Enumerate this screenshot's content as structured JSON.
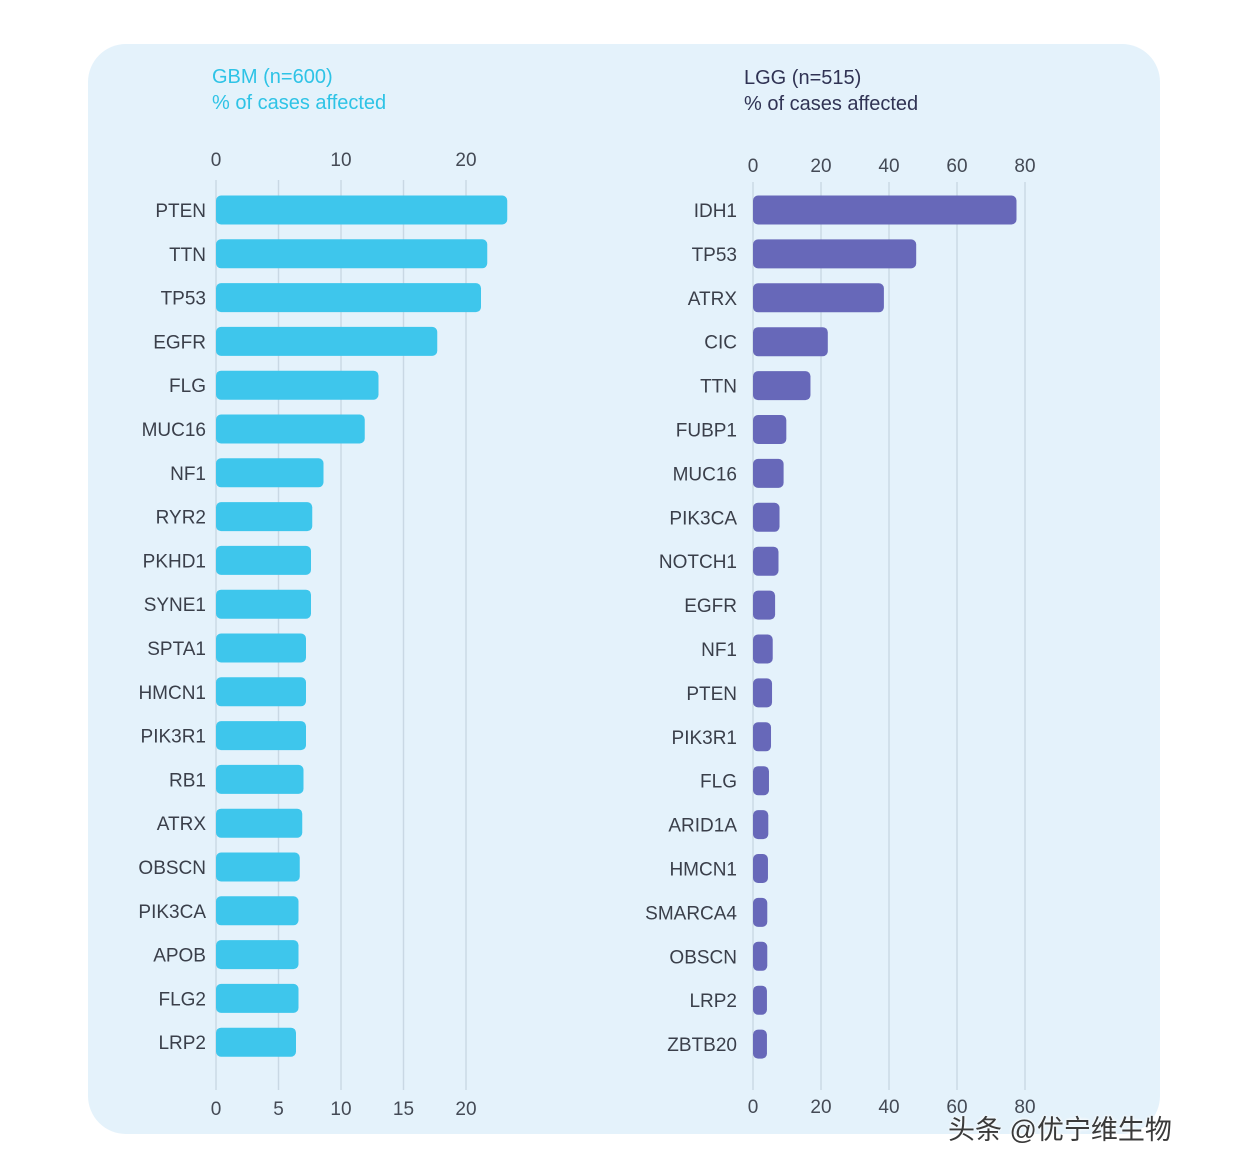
{
  "charts": {
    "gbm": {
      "title_line1": "GBM (n=600)",
      "title_line2": "% of cases affected"
    },
    "lgg": {
      "title_line1": "LGG (n=515)",
      "title_line2": "% of cases affected"
    }
  },
  "watermark": {
    "prefix": "头条",
    "handle": "@优宁维生物"
  },
  "colors": {
    "gbm_bar": "#3ec6ec",
    "lgg_bar": "#6768b9",
    "panel_bg": "#e4f2fb",
    "gbm_title": "#2ec3e6",
    "lgg_title": "#303354"
  },
  "chart_data": [
    {
      "type": "bar",
      "orientation": "horizontal",
      "title": "GBM (n=600)",
      "xlabel": "% of cases affected",
      "xlim": [
        0,
        24
      ],
      "top_ticks": [
        0,
        10,
        20
      ],
      "bottom_ticks": [
        0,
        5,
        10,
        15,
        20
      ],
      "grid": true,
      "categories": [
        "PTEN",
        "TTN",
        "TP53",
        "EGFR",
        "FLG",
        "MUC16",
        "NF1",
        "RYR2",
        "PKHD1",
        "SYNE1",
        "SPTA1",
        "HMCN1",
        "PIK3R1",
        "RB1",
        "ATRX",
        "OBSCN",
        "PIK3CA",
        "APOB",
        "FLG2",
        "LRP2"
      ],
      "values": [
        23.3,
        21.7,
        21.2,
        17.7,
        13.0,
        11.9,
        8.6,
        7.7,
        7.6,
        7.6,
        7.2,
        7.2,
        7.2,
        7.0,
        6.9,
        6.7,
        6.6,
        6.6,
        6.6,
        6.4
      ]
    },
    {
      "type": "bar",
      "orientation": "horizontal",
      "title": "LGG (n=515)",
      "xlabel": "% of cases affected",
      "xlim": [
        0,
        80
      ],
      "top_ticks": [
        0,
        20,
        40,
        60,
        80
      ],
      "bottom_ticks": [
        0,
        20,
        40,
        60,
        80
      ],
      "grid": true,
      "categories": [
        "IDH1",
        "TP53",
        "ATRX",
        "CIC",
        "TTN",
        "FUBP1",
        "MUC16",
        "PIK3CA",
        "NOTCH1",
        "EGFR",
        "NF1",
        "PTEN",
        "PIK3R1",
        "FLG",
        "ARID1A",
        "HMCN1",
        "SMARCA4",
        "OBSCN",
        "LRP2",
        "ZBTB20"
      ],
      "values": [
        77.5,
        48.0,
        38.5,
        22.0,
        16.9,
        9.8,
        9.0,
        7.8,
        7.5,
        6.5,
        5.8,
        5.6,
        5.3,
        4.7,
        4.5,
        4.4,
        4.2,
        4.2,
        4.1,
        4.1
      ]
    }
  ]
}
